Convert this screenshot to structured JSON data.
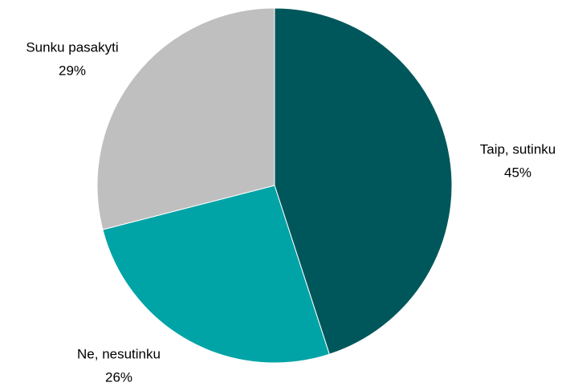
{
  "chart_data": {
    "type": "pie",
    "categories": [
      "Taip, sutinku",
      "Ne, nesutinku",
      "Sunku pasakyti"
    ],
    "values": [
      45,
      26,
      29
    ],
    "value_labels": [
      "45%",
      "26%",
      "29%"
    ],
    "colors": [
      "#00575b",
      "#00a3a6",
      "#bfbfbf"
    ]
  }
}
